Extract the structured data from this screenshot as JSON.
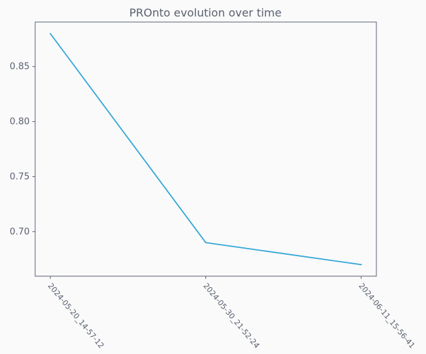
{
  "chart_data": {
    "type": "line",
    "title": "PROnto evolution over time",
    "xlabel": "",
    "ylabel": "",
    "categories": [
      "2024-05-20_14-57-12",
      "2024-05-30_21-52-24",
      "2024-06-11_15-56-41"
    ],
    "series": [
      {
        "values": [
          0.88,
          0.69,
          0.67
        ]
      }
    ],
    "ylim": [
      0.6595,
      0.8905
    ],
    "yticks": [
      0.7,
      0.75,
      0.8,
      0.85
    ],
    "ytick_labels": [
      "0.70",
      "0.75",
      "0.80",
      "0.85"
    ],
    "grid": false,
    "legend": "none",
    "colors": {
      "line": "#35a7d6",
      "axes": "#5a6170",
      "text": "#5a6170",
      "plot_bg": "#fafafa"
    }
  }
}
